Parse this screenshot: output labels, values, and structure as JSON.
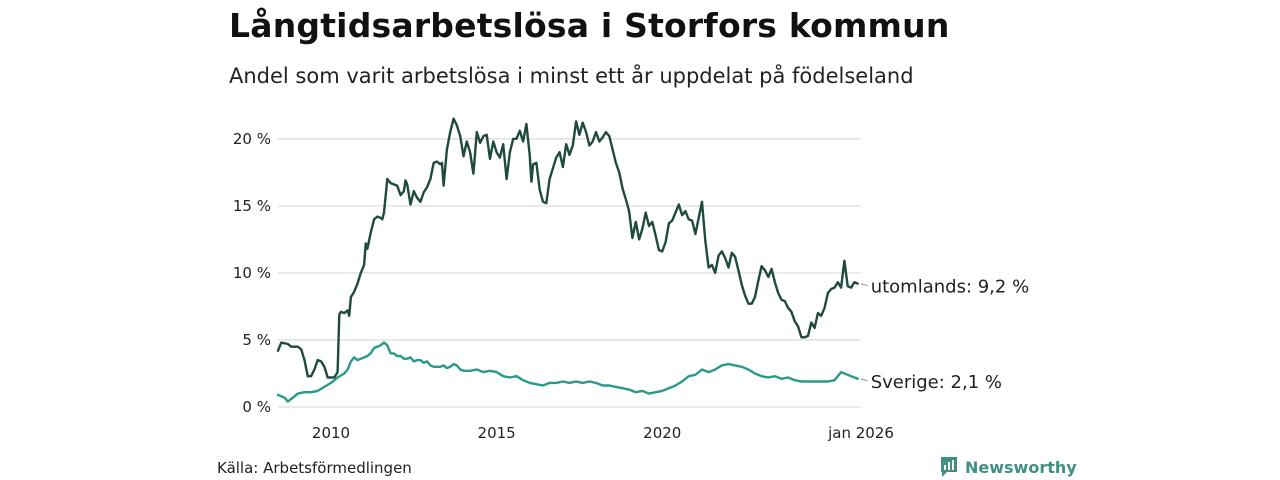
{
  "title": "Långtidsarbetslösa i Storfors kommun",
  "subtitle": "Andel som varit arbetslösa i minst ett år uppdelat på födelseland",
  "source": "Källa: Arbetsförmedlingen",
  "brand": {
    "name": "Newsworthy",
    "icon": "newsworthy-logo-icon",
    "color": "#3f8f83"
  },
  "chart_data": {
    "type": "line",
    "title": "Långtidsarbetslösa i Storfors kommun",
    "xlabel": "",
    "ylabel": "",
    "xlim": [
      2008.4,
      2026.0
    ],
    "ylim": [
      0,
      21.7
    ],
    "yticks": [
      {
        "value": 0,
        "label": "0 %"
      },
      {
        "value": 5,
        "label": "5 %"
      },
      {
        "value": 10,
        "label": "10 %"
      },
      {
        "value": 15,
        "label": "15 %"
      },
      {
        "value": 20,
        "label": "20 %"
      }
    ],
    "xticks": [
      {
        "value": 2010,
        "label": "2010"
      },
      {
        "value": 2015,
        "label": "2015"
      },
      {
        "value": 2020,
        "label": "2020"
      },
      {
        "value": 2026,
        "label": "jan 2026"
      }
    ],
    "grid": true,
    "series": [
      {
        "name": "utomlands",
        "color": "#1f4a40",
        "end_label": "utomlands: 9,2 %",
        "points": [
          [
            2008.4,
            4.2
          ],
          [
            2008.5,
            4.8
          ],
          [
            2008.7,
            4.7
          ],
          [
            2008.8,
            4.5
          ],
          [
            2009.0,
            4.5
          ],
          [
            2009.1,
            4.3
          ],
          [
            2009.2,
            3.5
          ],
          [
            2009.3,
            2.3
          ],
          [
            2009.4,
            2.3
          ],
          [
            2009.5,
            2.8
          ],
          [
            2009.6,
            3.5
          ],
          [
            2009.7,
            3.4
          ],
          [
            2009.8,
            3.0
          ],
          [
            2009.9,
            2.2
          ],
          [
            2010.0,
            2.2
          ],
          [
            2010.1,
            2.2
          ],
          [
            2010.2,
            2.6
          ],
          [
            2010.25,
            6.9
          ],
          [
            2010.3,
            7.1
          ],
          [
            2010.4,
            7.0
          ],
          [
            2010.5,
            7.2
          ],
          [
            2010.55,
            6.8
          ],
          [
            2010.6,
            8.2
          ],
          [
            2010.7,
            8.6
          ],
          [
            2010.8,
            9.2
          ],
          [
            2010.9,
            10.0
          ],
          [
            2011.0,
            10.6
          ],
          [
            2011.05,
            12.2
          ],
          [
            2011.1,
            11.8
          ],
          [
            2011.2,
            13.0
          ],
          [
            2011.3,
            14.0
          ],
          [
            2011.4,
            14.2
          ],
          [
            2011.5,
            14.1
          ],
          [
            2011.55,
            14.0
          ],
          [
            2011.6,
            14.5
          ],
          [
            2011.7,
            17.0
          ],
          [
            2011.8,
            16.7
          ],
          [
            2011.9,
            16.6
          ],
          [
            2012.0,
            16.5
          ],
          [
            2012.1,
            15.8
          ],
          [
            2012.2,
            16.1
          ],
          [
            2012.25,
            16.9
          ],
          [
            2012.3,
            16.6
          ],
          [
            2012.4,
            15.1
          ],
          [
            2012.5,
            16.1
          ],
          [
            2012.6,
            15.6
          ],
          [
            2012.7,
            15.3
          ],
          [
            2012.8,
            16.0
          ],
          [
            2012.9,
            16.4
          ],
          [
            2013.0,
            17.0
          ],
          [
            2013.1,
            18.2
          ],
          [
            2013.2,
            18.3
          ],
          [
            2013.3,
            18.1
          ],
          [
            2013.35,
            18.2
          ],
          [
            2013.4,
            16.5
          ],
          [
            2013.5,
            19.2
          ],
          [
            2013.6,
            20.5
          ],
          [
            2013.7,
            21.5
          ],
          [
            2013.8,
            21.0
          ],
          [
            2013.9,
            20.2
          ],
          [
            2014.0,
            18.7
          ],
          [
            2014.1,
            19.8
          ],
          [
            2014.2,
            19.0
          ],
          [
            2014.3,
            17.4
          ],
          [
            2014.4,
            20.5
          ],
          [
            2014.5,
            19.7
          ],
          [
            2014.6,
            20.2
          ],
          [
            2014.7,
            20.3
          ],
          [
            2014.8,
            18.5
          ],
          [
            2014.9,
            19.8
          ],
          [
            2015.0,
            19.0
          ],
          [
            2015.1,
            18.6
          ],
          [
            2015.2,
            19.6
          ],
          [
            2015.3,
            17.0
          ],
          [
            2015.4,
            19.0
          ],
          [
            2015.5,
            20.0
          ],
          [
            2015.6,
            20.0
          ],
          [
            2015.7,
            20.6
          ],
          [
            2015.8,
            19.8
          ],
          [
            2015.9,
            21.1
          ],
          [
            2016.0,
            18.8
          ],
          [
            2016.05,
            16.8
          ],
          [
            2016.1,
            18.1
          ],
          [
            2016.2,
            18.2
          ],
          [
            2016.3,
            16.2
          ],
          [
            2016.4,
            15.3
          ],
          [
            2016.5,
            15.2
          ],
          [
            2016.6,
            17.0
          ],
          [
            2016.7,
            17.8
          ],
          [
            2016.8,
            18.6
          ],
          [
            2016.9,
            19.0
          ],
          [
            2017.0,
            17.9
          ],
          [
            2017.1,
            19.6
          ],
          [
            2017.2,
            18.8
          ],
          [
            2017.3,
            19.5
          ],
          [
            2017.4,
            21.3
          ],
          [
            2017.5,
            20.3
          ],
          [
            2017.6,
            21.2
          ],
          [
            2017.7,
            20.5
          ],
          [
            2017.8,
            19.5
          ],
          [
            2017.9,
            19.8
          ],
          [
            2018.0,
            20.5
          ],
          [
            2018.1,
            19.8
          ],
          [
            2018.2,
            20.1
          ],
          [
            2018.3,
            20.5
          ],
          [
            2018.4,
            20.2
          ],
          [
            2018.5,
            19.2
          ],
          [
            2018.6,
            18.2
          ],
          [
            2018.7,
            17.5
          ],
          [
            2018.8,
            16.3
          ],
          [
            2018.9,
            15.5
          ],
          [
            2019.0,
            14.6
          ],
          [
            2019.1,
            12.6
          ],
          [
            2019.2,
            13.8
          ],
          [
            2019.3,
            12.5
          ],
          [
            2019.4,
            13.3
          ],
          [
            2019.5,
            14.5
          ],
          [
            2019.6,
            13.5
          ],
          [
            2019.7,
            13.8
          ],
          [
            2019.8,
            12.8
          ],
          [
            2019.9,
            11.7
          ],
          [
            2020.0,
            11.6
          ],
          [
            2020.1,
            12.3
          ],
          [
            2020.2,
            13.7
          ],
          [
            2020.3,
            13.9
          ],
          [
            2020.4,
            14.5
          ],
          [
            2020.5,
            15.1
          ],
          [
            2020.6,
            14.3
          ],
          [
            2020.7,
            14.6
          ],
          [
            2020.8,
            14.0
          ],
          [
            2020.9,
            13.9
          ],
          [
            2021.0,
            12.9
          ],
          [
            2021.1,
            14.1
          ],
          [
            2021.2,
            15.3
          ],
          [
            2021.3,
            12.4
          ],
          [
            2021.4,
            10.4
          ],
          [
            2021.5,
            10.6
          ],
          [
            2021.6,
            10.0
          ],
          [
            2021.7,
            11.3
          ],
          [
            2021.8,
            11.6
          ],
          [
            2021.9,
            11.1
          ],
          [
            2022.0,
            10.4
          ],
          [
            2022.1,
            11.5
          ],
          [
            2022.2,
            11.2
          ],
          [
            2022.3,
            10.2
          ],
          [
            2022.4,
            9.1
          ],
          [
            2022.5,
            8.3
          ],
          [
            2022.6,
            7.7
          ],
          [
            2022.7,
            7.7
          ],
          [
            2022.8,
            8.2
          ],
          [
            2022.9,
            9.4
          ],
          [
            2023.0,
            10.5
          ],
          [
            2023.1,
            10.2
          ],
          [
            2023.2,
            9.7
          ],
          [
            2023.3,
            10.3
          ],
          [
            2023.4,
            9.3
          ],
          [
            2023.5,
            8.5
          ],
          [
            2023.6,
            8.0
          ],
          [
            2023.7,
            7.9
          ],
          [
            2023.8,
            7.4
          ],
          [
            2023.9,
            7.1
          ],
          [
            2024.0,
            6.4
          ],
          [
            2024.1,
            6.0
          ],
          [
            2024.2,
            5.2
          ],
          [
            2024.3,
            5.2
          ],
          [
            2024.4,
            5.3
          ],
          [
            2024.5,
            6.3
          ],
          [
            2024.6,
            5.9
          ],
          [
            2024.7,
            7.0
          ],
          [
            2024.8,
            6.8
          ],
          [
            2024.9,
            7.4
          ],
          [
            2025.0,
            8.5
          ],
          [
            2025.1,
            8.8
          ],
          [
            2025.2,
            8.9
          ],
          [
            2025.3,
            9.3
          ],
          [
            2025.4,
            8.9
          ],
          [
            2025.5,
            10.9
          ],
          [
            2025.6,
            9.0
          ],
          [
            2025.7,
            8.9
          ],
          [
            2025.8,
            9.3
          ],
          [
            2025.9,
            9.2
          ]
        ]
      },
      {
        "name": "Sverige",
        "color": "#2a9a88",
        "end_label": "Sverige: 2,1 %",
        "points": [
          [
            2008.4,
            0.9
          ],
          [
            2008.5,
            0.8
          ],
          [
            2008.6,
            0.7
          ],
          [
            2008.7,
            0.4
          ],
          [
            2008.8,
            0.6
          ],
          [
            2008.9,
            0.8
          ],
          [
            2009.0,
            1.0
          ],
          [
            2009.2,
            1.1
          ],
          [
            2009.4,
            1.1
          ],
          [
            2009.6,
            1.2
          ],
          [
            2009.8,
            1.5
          ],
          [
            2010.0,
            1.8
          ],
          [
            2010.2,
            2.2
          ],
          [
            2010.4,
            2.5
          ],
          [
            2010.5,
            2.8
          ],
          [
            2010.6,
            3.4
          ],
          [
            2010.7,
            3.7
          ],
          [
            2010.8,
            3.5
          ],
          [
            2010.9,
            3.6
          ],
          [
            2011.0,
            3.7
          ],
          [
            2011.1,
            3.8
          ],
          [
            2011.2,
            4.0
          ],
          [
            2011.3,
            4.4
          ],
          [
            2011.4,
            4.5
          ],
          [
            2011.5,
            4.6
          ],
          [
            2011.6,
            4.8
          ],
          [
            2011.7,
            4.6
          ],
          [
            2011.8,
            4.0
          ],
          [
            2011.9,
            4.0
          ],
          [
            2012.0,
            3.8
          ],
          [
            2012.1,
            3.8
          ],
          [
            2012.2,
            3.6
          ],
          [
            2012.3,
            3.6
          ],
          [
            2012.4,
            3.7
          ],
          [
            2012.5,
            3.4
          ],
          [
            2012.6,
            3.5
          ],
          [
            2012.7,
            3.5
          ],
          [
            2012.8,
            3.3
          ],
          [
            2012.9,
            3.4
          ],
          [
            2013.0,
            3.1
          ],
          [
            2013.1,
            3.0
          ],
          [
            2013.2,
            3.0
          ],
          [
            2013.3,
            3.0
          ],
          [
            2013.4,
            3.1
          ],
          [
            2013.5,
            2.9
          ],
          [
            2013.6,
            3.0
          ],
          [
            2013.7,
            3.2
          ],
          [
            2013.8,
            3.1
          ],
          [
            2013.9,
            2.8
          ],
          [
            2014.0,
            2.7
          ],
          [
            2014.2,
            2.7
          ],
          [
            2014.4,
            2.8
          ],
          [
            2014.6,
            2.6
          ],
          [
            2014.8,
            2.7
          ],
          [
            2015.0,
            2.6
          ],
          [
            2015.2,
            2.3
          ],
          [
            2015.4,
            2.2
          ],
          [
            2015.6,
            2.3
          ],
          [
            2015.8,
            2.0
          ],
          [
            2016.0,
            1.8
          ],
          [
            2016.2,
            1.7
          ],
          [
            2016.4,
            1.6
          ],
          [
            2016.6,
            1.8
          ],
          [
            2016.8,
            1.8
          ],
          [
            2017.0,
            1.9
          ],
          [
            2017.2,
            1.8
          ],
          [
            2017.4,
            1.9
          ],
          [
            2017.6,
            1.8
          ],
          [
            2017.8,
            1.9
          ],
          [
            2018.0,
            1.8
          ],
          [
            2018.2,
            1.6
          ],
          [
            2018.4,
            1.6
          ],
          [
            2018.6,
            1.5
          ],
          [
            2018.8,
            1.4
          ],
          [
            2019.0,
            1.3
          ],
          [
            2019.2,
            1.1
          ],
          [
            2019.4,
            1.2
          ],
          [
            2019.6,
            1.0
          ],
          [
            2019.8,
            1.1
          ],
          [
            2020.0,
            1.2
          ],
          [
            2020.2,
            1.4
          ],
          [
            2020.4,
            1.6
          ],
          [
            2020.6,
            1.9
          ],
          [
            2020.8,
            2.3
          ],
          [
            2021.0,
            2.4
          ],
          [
            2021.2,
            2.8
          ],
          [
            2021.4,
            2.6
          ],
          [
            2021.6,
            2.8
          ],
          [
            2021.8,
            3.1
          ],
          [
            2022.0,
            3.2
          ],
          [
            2022.2,
            3.1
          ],
          [
            2022.4,
            3.0
          ],
          [
            2022.6,
            2.8
          ],
          [
            2022.8,
            2.5
          ],
          [
            2023.0,
            2.3
          ],
          [
            2023.2,
            2.2
          ],
          [
            2023.4,
            2.3
          ],
          [
            2023.6,
            2.1
          ],
          [
            2023.8,
            2.2
          ],
          [
            2024.0,
            2.0
          ],
          [
            2024.2,
            1.9
          ],
          [
            2024.4,
            1.9
          ],
          [
            2024.6,
            1.9
          ],
          [
            2024.8,
            1.9
          ],
          [
            2025.0,
            1.9
          ],
          [
            2025.2,
            2.0
          ],
          [
            2025.4,
            2.6
          ],
          [
            2025.6,
            2.4
          ],
          [
            2025.8,
            2.2
          ],
          [
            2025.9,
            2.1
          ]
        ]
      }
    ]
  }
}
